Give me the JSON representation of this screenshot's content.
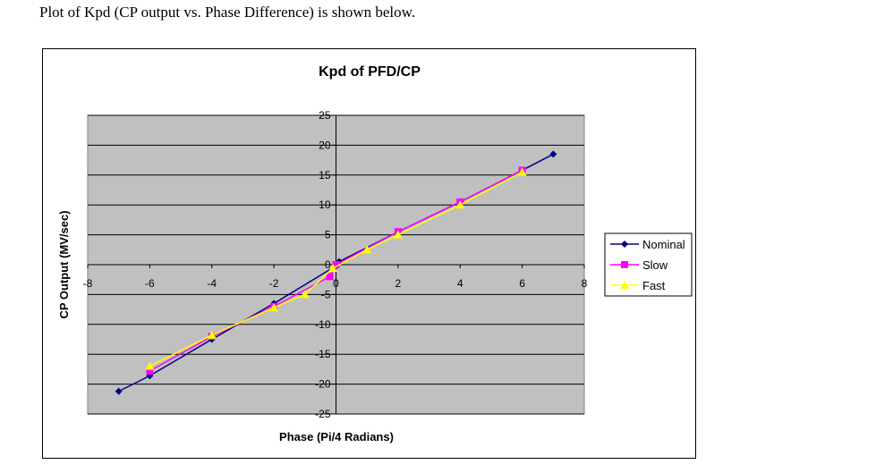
{
  "intro_text": "Plot of Kpd (CP output vs. Phase Difference) is shown below.",
  "chart_data": {
    "type": "line",
    "title": "Kpd of PFD/CP",
    "xlabel": "Phase (Pi/4 Radians)",
    "ylabel": "CP Output (MV/sec)",
    "xlim": [
      -8,
      8
    ],
    "ylim": [
      -25,
      25
    ],
    "xticks": [
      -8,
      -6,
      -4,
      -2,
      0,
      2,
      4,
      6,
      8
    ],
    "yticks": [
      25,
      20,
      15,
      10,
      5,
      0,
      -5,
      -10,
      -15,
      -20,
      -25
    ],
    "grid": "horizontal",
    "plot_background": "#c0c0c0",
    "legend_position": "right",
    "series": [
      {
        "name": "Nominal",
        "color": "#000080",
        "marker": "diamond",
        "x": [
          -7,
          -6,
          -4,
          -2,
          0,
          0.1,
          2,
          4,
          6,
          7
        ],
        "y": [
          -21.2,
          -18.6,
          -12.5,
          -6.5,
          -0.2,
          0.5,
          5.5,
          10.5,
          15.8,
          18.5
        ]
      },
      {
        "name": "Slow",
        "color": "#ff00ff",
        "marker": "square",
        "x": [
          -6,
          -4,
          -2,
          -0.2,
          0,
          2,
          4,
          6
        ],
        "y": [
          -17.8,
          -12,
          -7,
          -2,
          0,
          5.5,
          10.5,
          15.8
        ]
      },
      {
        "name": "Fast",
        "color": "#ffff00",
        "marker": "triangle",
        "x": [
          -6,
          -4,
          -2,
          -1,
          -0.1,
          1,
          2,
          4,
          6
        ],
        "y": [
          -17,
          -11.8,
          -7.2,
          -5,
          -0.6,
          2.5,
          5,
          10,
          15.5
        ]
      }
    ]
  }
}
